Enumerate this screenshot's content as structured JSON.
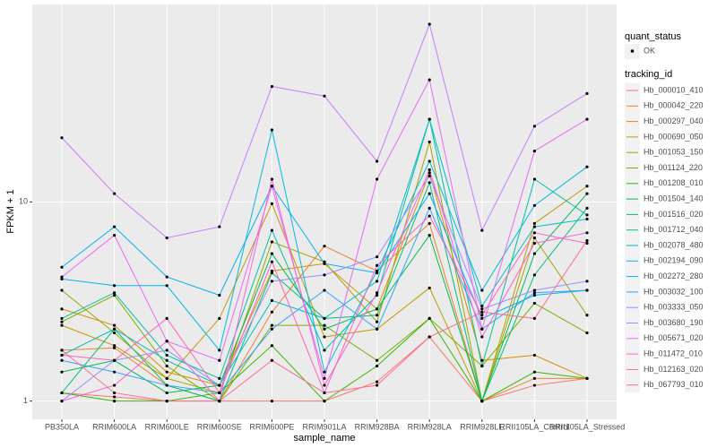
{
  "chart_data": {
    "type": "line",
    "x_label": "sample_name",
    "y_label": "FPKM + 1",
    "categories": [
      "PB350LA",
      "RRIM600LA",
      "RRIM600LE",
      "RRIM600SE",
      "RRIM600PE",
      "RRIM901LA",
      "RRIM928BA",
      "RRIM928LA",
      "RRIM928LE",
      "RRII105LA_Control",
      "RRII105LA_Stressed"
    ],
    "log_y": true,
    "ylim": [
      0.81,
      98
    ],
    "yticks": [
      1,
      10
    ],
    "grid": true,
    "point_legend_title": "quant_status",
    "point_legend_items": [
      "OK"
    ],
    "legend_title": "tracking_id",
    "legend_position": "right",
    "series": [
      {
        "name": "Hb_000010_410",
        "color": "#F8766D",
        "values": [
          1.1,
          1.05,
          1.0,
          1.0,
          1.0,
          1.0,
          1.25,
          2.1,
          1.0,
          1.2,
          1.3
        ]
      },
      {
        "name": "Hb_000042_220",
        "color": "#EA8331",
        "values": [
          1.8,
          1.85,
          1.2,
          1.0,
          2.8,
          6.0,
          4.5,
          7.8,
          1.0,
          1.3,
          1.3
        ]
      },
      {
        "name": "Hb_000297_040",
        "color": "#D89000",
        "values": [
          2.9,
          2.4,
          1.4,
          1.2,
          4.5,
          4.9,
          2.9,
          14,
          1.6,
          1.7,
          1.3
        ]
      },
      {
        "name": "Hb_000690_050",
        "color": "#C09B00",
        "values": [
          2.4,
          1.9,
          1.3,
          2.6,
          9.8,
          2.1,
          2.3,
          3.7,
          1.0,
          7.8,
          12
        ]
      },
      {
        "name": "Hb_001053_150",
        "color": "#A3A500",
        "values": [
          3.6,
          2.2,
          1.3,
          1.1,
          6.3,
          5.0,
          2.5,
          20,
          1.0,
          6.6,
          2.7
        ]
      },
      {
        "name": "Hb_001124_220",
        "color": "#7CAE00",
        "values": [
          2.5,
          3.4,
          1.5,
          1.0,
          2.4,
          2.4,
          1.6,
          2.6,
          1.5,
          3.1,
          2.2
        ]
      },
      {
        "name": "Hb_001208_010",
        "color": "#39B600",
        "values": [
          1.1,
          1.0,
          1.0,
          1.1,
          1.9,
          1.0,
          1.5,
          2.6,
          1.0,
          1.4,
          1.3
        ]
      },
      {
        "name": "Hb_001504_140",
        "color": "#00BB4E",
        "values": [
          1.4,
          1.6,
          1.1,
          1.2,
          5.5,
          2.3,
          2.9,
          6.8,
          1.0,
          5.5,
          11
        ]
      },
      {
        "name": "Hb_001516_020",
        "color": "#00BF7D",
        "values": [
          1.1,
          2.3,
          1.2,
          1.0,
          4.4,
          2.6,
          2.7,
          12.5,
          1.0,
          4.3,
          9.3
        ]
      },
      {
        "name": "Hb_001712_040",
        "color": "#00C1A3",
        "values": [
          2.6,
          3.5,
          1.7,
          1.3,
          7.2,
          1.8,
          3.4,
          26,
          1.5,
          13,
          8.6
        ]
      },
      {
        "name": "Hb_002078_480",
        "color": "#00BFC4",
        "values": [
          1.7,
          2.3,
          1.6,
          1.2,
          3.2,
          2.6,
          4.0,
          26,
          3.0,
          7.5,
          8.2
        ]
      },
      {
        "name": "Hb_002194_090",
        "color": "#00BAE0",
        "values": [
          4.1,
          3.8,
          3.8,
          1.8,
          23,
          1.4,
          4.5,
          16,
          3.6,
          9.6,
          15
        ]
      },
      {
        "name": "Hb_002272_280",
        "color": "#00B0F6",
        "values": [
          4.7,
          7.5,
          4.2,
          3.4,
          12,
          4.9,
          4.4,
          11,
          2.6,
          3.4,
          3.6
        ]
      },
      {
        "name": "Hb_003032_100",
        "color": "#35A2FF",
        "values": [
          1.6,
          1.4,
          1.2,
          1.1,
          2.3,
          3.6,
          2.3,
          9.3,
          2.3,
          3.5,
          3.6
        ]
      },
      {
        "name": "Hb_003333_050",
        "color": "#9590FF",
        "values": [
          1.0,
          1.6,
          1.8,
          1.2,
          4.0,
          4.3,
          5.3,
          13.5,
          2.9,
          3.6,
          4.0
        ]
      },
      {
        "name": "Hb_003680_190",
        "color": "#C77CFF",
        "values": [
          21,
          11,
          6.6,
          7.5,
          38,
          34,
          16,
          78,
          7.2,
          24,
          35
        ]
      },
      {
        "name": "Hb_005671_020",
        "color": "#E76BF3",
        "values": [
          4.2,
          6.8,
          2.0,
          1.6,
          12,
          1.3,
          13,
          41,
          2.3,
          18,
          26
        ]
      },
      {
        "name": "Hb_011472_010",
        "color": "#FA62DB",
        "values": [
          1.0,
          1.2,
          2.0,
          1.0,
          13,
          1.2,
          3.5,
          14.5,
          2.1,
          6.2,
          7.0
        ]
      },
      {
        "name": "Hb_012163_020",
        "color": "#FF62BC",
        "values": [
          1.7,
          1.6,
          2.6,
          1.1,
          5.0,
          1.1,
          4.8,
          8.5,
          2.7,
          7.0,
          6.2
        ]
      },
      {
        "name": "Hb_067793_010",
        "color": "#FF6C91",
        "values": [
          1.8,
          1.1,
          1.0,
          1.0,
          1.6,
          1.1,
          1.2,
          2.1,
          2.8,
          2.6,
          6.4
        ]
      }
    ]
  }
}
